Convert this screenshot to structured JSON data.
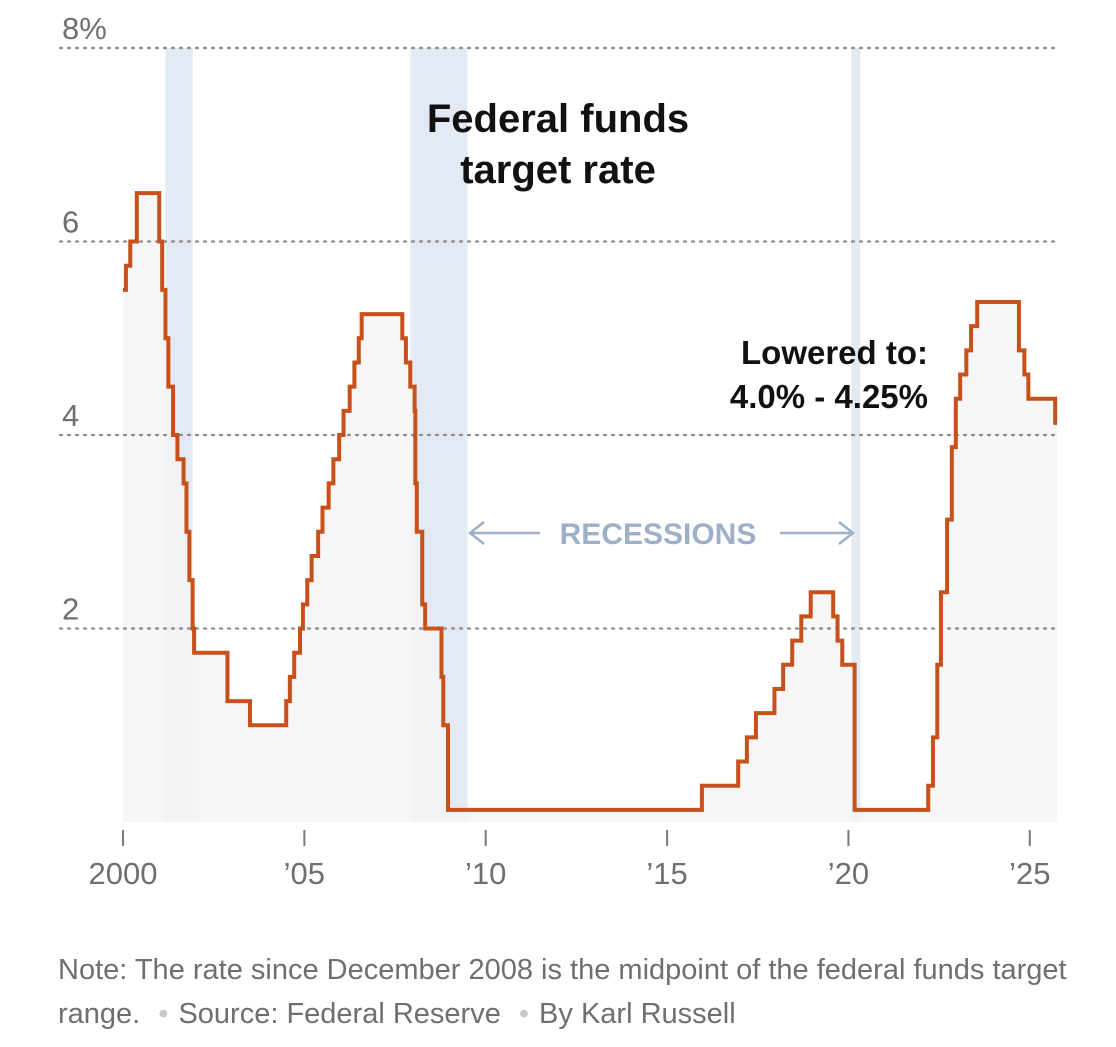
{
  "chart_data": {
    "type": "line",
    "title": [
      "Federal funds",
      "target rate"
    ],
    "y_unit": "%",
    "ylim": [
      0,
      8
    ],
    "xlim": [
      2000.0,
      2025.75
    ],
    "y_ticks": [
      {
        "value": 8,
        "label": "8%"
      },
      {
        "value": 6,
        "label": "6"
      },
      {
        "value": 4,
        "label": "4"
      },
      {
        "value": 2,
        "label": "2"
      }
    ],
    "x_ticks": [
      {
        "value": 2000,
        "label": "2000"
      },
      {
        "value": 2005,
        "label": "’05"
      },
      {
        "value": 2010,
        "label": "’10"
      },
      {
        "value": 2015,
        "label": "’15"
      },
      {
        "value": 2020,
        "label": "’20"
      },
      {
        "value": 2025,
        "label": "’25"
      }
    ],
    "grid": "dotted horizontal",
    "recessions": [
      [
        2001.17,
        2001.92
      ],
      [
        2007.92,
        2009.5
      ],
      [
        2020.08,
        2020.33
      ]
    ],
    "recession_label": "RECESSIONS",
    "annotation": [
      "Lowered to:",
      "4.0% - 4.25%"
    ],
    "series": [
      {
        "color": "#c8501b",
        "step": true,
        "points": [
          [
            2000.0,
            5.5
          ],
          [
            2000.08,
            5.75
          ],
          [
            2000.2,
            6.0
          ],
          [
            2000.38,
            6.5
          ],
          [
            2001.0,
            6.0
          ],
          [
            2001.08,
            5.5
          ],
          [
            2001.17,
            5.0
          ],
          [
            2001.25,
            4.5
          ],
          [
            2001.38,
            4.0
          ],
          [
            2001.5,
            3.75
          ],
          [
            2001.67,
            3.5
          ],
          [
            2001.75,
            3.0
          ],
          [
            2001.83,
            2.5
          ],
          [
            2001.92,
            2.0
          ],
          [
            2001.96,
            1.75
          ],
          [
            2002.88,
            1.25
          ],
          [
            2003.5,
            1.0
          ],
          [
            2004.5,
            1.25
          ],
          [
            2004.6,
            1.5
          ],
          [
            2004.72,
            1.75
          ],
          [
            2004.88,
            2.0
          ],
          [
            2004.96,
            2.25
          ],
          [
            2005.08,
            2.5
          ],
          [
            2005.2,
            2.75
          ],
          [
            2005.38,
            3.0
          ],
          [
            2005.5,
            3.25
          ],
          [
            2005.67,
            3.5
          ],
          [
            2005.8,
            3.75
          ],
          [
            2005.96,
            4.0
          ],
          [
            2006.08,
            4.25
          ],
          [
            2006.25,
            4.5
          ],
          [
            2006.38,
            4.75
          ],
          [
            2006.5,
            5.0
          ],
          [
            2006.58,
            5.25
          ],
          [
            2007.7,
            5.0
          ],
          [
            2007.8,
            4.75
          ],
          [
            2007.92,
            4.5
          ],
          [
            2008.04,
            4.25
          ],
          [
            2008.06,
            3.5
          ],
          [
            2008.1,
            3.0
          ],
          [
            2008.25,
            2.25
          ],
          [
            2008.33,
            2.0
          ],
          [
            2008.78,
            1.5
          ],
          [
            2008.83,
            1.0
          ],
          [
            2008.96,
            0.125
          ],
          [
            2015.96,
            0.375
          ],
          [
            2016.96,
            0.625
          ],
          [
            2017.2,
            0.875
          ],
          [
            2017.45,
            1.125
          ],
          [
            2017.96,
            1.375
          ],
          [
            2018.2,
            1.625
          ],
          [
            2018.45,
            1.875
          ],
          [
            2018.7,
            2.125
          ],
          [
            2018.96,
            2.375
          ],
          [
            2019.58,
            2.125
          ],
          [
            2019.7,
            1.875
          ],
          [
            2019.83,
            1.625
          ],
          [
            2020.17,
            0.125
          ],
          [
            2022.2,
            0.375
          ],
          [
            2022.33,
            0.875
          ],
          [
            2022.45,
            1.625
          ],
          [
            2022.55,
            2.375
          ],
          [
            2022.72,
            3.125
          ],
          [
            2022.85,
            3.875
          ],
          [
            2022.96,
            4.375
          ],
          [
            2023.08,
            4.625
          ],
          [
            2023.25,
            4.875
          ],
          [
            2023.38,
            5.125
          ],
          [
            2023.55,
            5.375
          ],
          [
            2024.7,
            4.875
          ],
          [
            2024.85,
            4.625
          ],
          [
            2024.96,
            4.375
          ],
          [
            2025.7,
            4.125
          ],
          [
            2025.75,
            4.125
          ]
        ]
      }
    ]
  },
  "footer": {
    "note": "Note: The rate since December 2008 is the midpoint of the federal funds target range.",
    "source": "Source: Federal Reserve",
    "byline": "By Karl Russell"
  }
}
